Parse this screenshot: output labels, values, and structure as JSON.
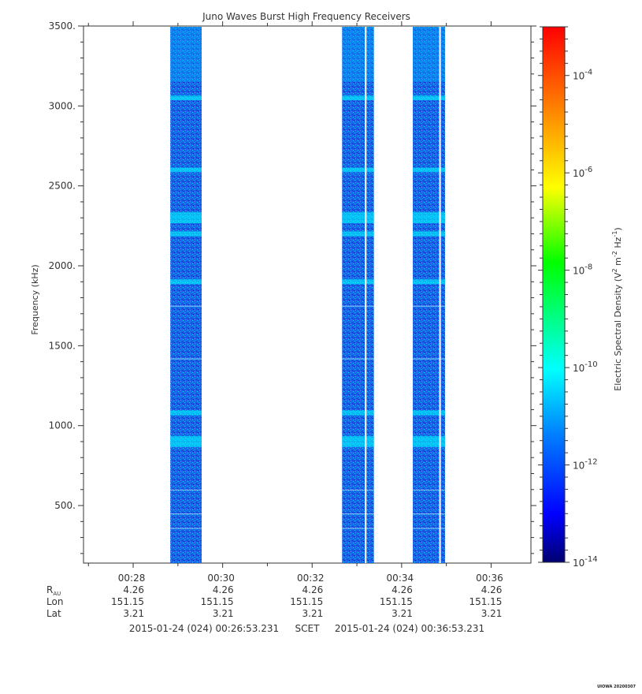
{
  "chart_data": {
    "type": "heatmap",
    "title": "Juno Waves Burst High Frequency Receivers",
    "ylabel": "Frequency (kHz)",
    "colorbar_label": "Electric Spectral Density (V² m⁻² Hz⁻¹)",
    "colorbar_label_parts": {
      "main": "Electric Spectral Density (V",
      "sup1": "2",
      "mid": " m",
      "sup2": "-2",
      "mid2": " Hz",
      "sup3": "-1",
      "end": ")"
    },
    "ylim": [
      140,
      3500
    ],
    "yticks": [
      {
        "value": 500,
        "label": "500."
      },
      {
        "value": 1000,
        "label": "1000."
      },
      {
        "value": 1500,
        "label": "1500."
      },
      {
        "value": 2000,
        "label": "2000."
      },
      {
        "value": 2500,
        "label": "2500."
      },
      {
        "value": 3000,
        "label": "3000."
      },
      {
        "value": 3500,
        "label": "3500."
      }
    ],
    "xlim_minutes": [
      26.89,
      36.89
    ],
    "xticks": [
      {
        "minute": 28,
        "label": "00:28"
      },
      {
        "minute": 30,
        "label": "00:30"
      },
      {
        "minute": 32,
        "label": "00:32"
      },
      {
        "minute": 34,
        "label": "00:34"
      },
      {
        "minute": 36,
        "label": "00:36"
      }
    ],
    "colorbar": {
      "log_range": [
        -14,
        -3
      ],
      "ticks": [
        {
          "exp": -14,
          "base": "10",
          "sup": "-14"
        },
        {
          "exp": -12,
          "base": "10",
          "sup": "-12"
        },
        {
          "exp": -10,
          "base": "10",
          "sup": "-10"
        },
        {
          "exp": -8,
          "base": "10",
          "sup": "-8"
        },
        {
          "exp": -6,
          "base": "10",
          "sup": "-6"
        },
        {
          "exp": -4,
          "base": "10",
          "sup": "-4"
        }
      ],
      "colors": [
        "#000070",
        "#0000ff",
        "#0080ff",
        "#00ffff",
        "#00ff00",
        "#ffff00",
        "#ff8000",
        "#ff0000"
      ]
    },
    "bursts": [
      {
        "start_minute": 28.83,
        "end_minute": 29.53
      },
      {
        "start_minute": 32.67,
        "end_minute": 33.38
      },
      {
        "start_minute": 34.25,
        "end_minute": 34.97
      }
    ],
    "bright_bands_khz": [
      3050,
      2600,
      2300,
      2200,
      1900,
      1080,
      900
    ],
    "dropout_lines": [
      33.18,
      34.84
    ],
    "ephemeris": {
      "rows": [
        {
          "label": "R",
          "sub": "AU",
          "values": [
            "4.26",
            "4.26",
            "4.26",
            "4.26",
            "4.26"
          ]
        },
        {
          "label": "Lon",
          "values": [
            "151.15",
            "151.15",
            "151.15",
            "151.15",
            "151.15"
          ]
        },
        {
          "label": "Lat",
          "values": [
            "3.21",
            "3.21",
            "3.21",
            "3.21",
            "3.21"
          ]
        }
      ]
    },
    "time_range": {
      "start": "2015-01-24 (024) 00:26:53.231",
      "mid": "SCET",
      "end": "2015-01-24 (024) 00:36:53.231"
    }
  },
  "footer": "UIOWA 20200307"
}
